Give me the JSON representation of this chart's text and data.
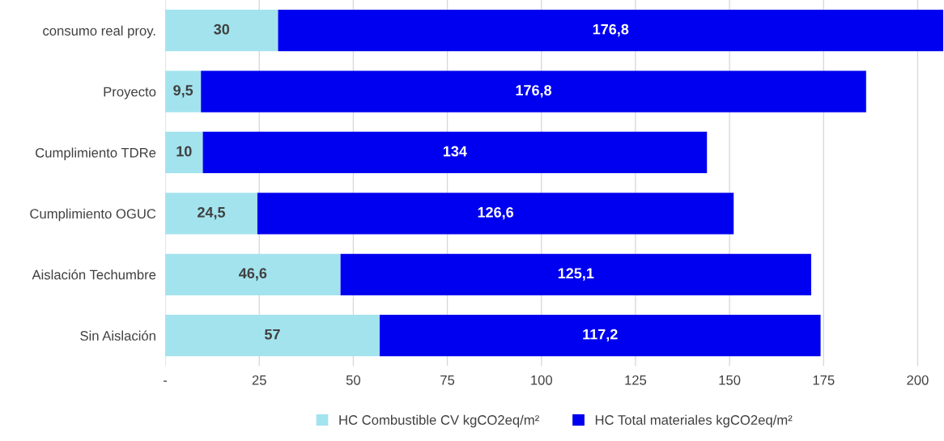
{
  "chart_data": {
    "type": "bar",
    "orientation": "horizontal",
    "stacked": true,
    "categories": [
      "consumo real proy.",
      "Proyecto",
      "Cumplimiento TDRe",
      "Cumplimiento OGUC",
      "Aislación Techumbre",
      "Sin Aislación"
    ],
    "series": [
      {
        "name": "HC Combustible CV kgCO2eq/m²",
        "color": "#a3e3ee",
        "values": [
          30,
          9.5,
          10,
          24.5,
          46.6,
          57
        ],
        "value_labels": [
          "30",
          "9,5",
          "10",
          "24,5",
          "46,6",
          "57"
        ]
      },
      {
        "name": "HC Total materiales kgCO2eq/m²",
        "color": "#0000f0",
        "values": [
          176.8,
          176.8,
          134,
          126.6,
          125.1,
          117.2
        ],
        "value_labels": [
          "176,8",
          "176,8",
          "134",
          "126,6",
          "125,1",
          "117,2"
        ]
      }
    ],
    "xlim": [
      0,
      207
    ],
    "xticks": [
      {
        "value": 0,
        "label": "-"
      },
      25,
      50,
      75,
      100,
      125,
      150,
      175,
      200
    ],
    "grid": "x",
    "legend": "bottom"
  }
}
